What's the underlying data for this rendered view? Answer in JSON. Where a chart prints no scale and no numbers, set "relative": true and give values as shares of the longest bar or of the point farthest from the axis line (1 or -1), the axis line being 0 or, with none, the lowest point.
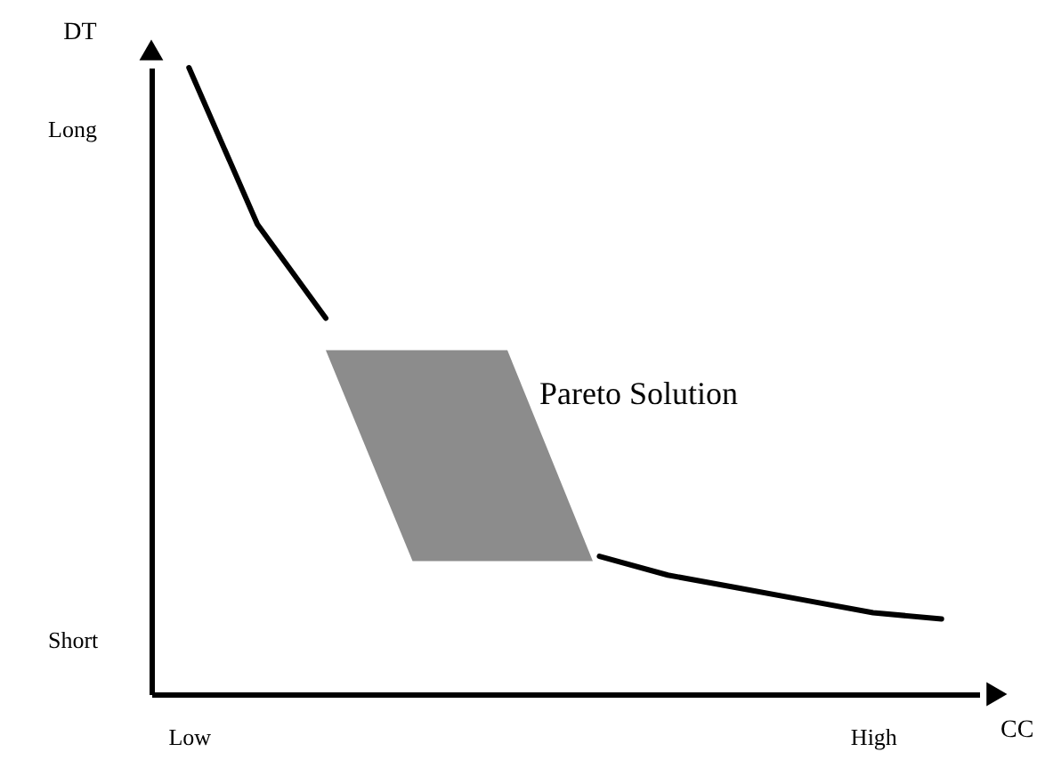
{
  "chart_data": {
    "type": "line",
    "relative": true,
    "xlabel": "CC",
    "ylabel": "DT",
    "categories": [
      "Low",
      null,
      null,
      null,
      null,
      null,
      null,
      null,
      null,
      null,
      "High",
      null
    ],
    "series": [
      {
        "color": "#000000",
        "values": [
          1.0,
          0.75,
          0.6,
          null,
          null,
          null,
          0.22,
          0.19,
          0.17,
          0.15,
          0.13,
          0.12
        ]
      }
    ],
    "annotations": [
      "Pareto Solution",
      "Long",
      "Short"
    ],
    "grid": false,
    "marker": "none",
    "line_style": "solid"
  }
}
